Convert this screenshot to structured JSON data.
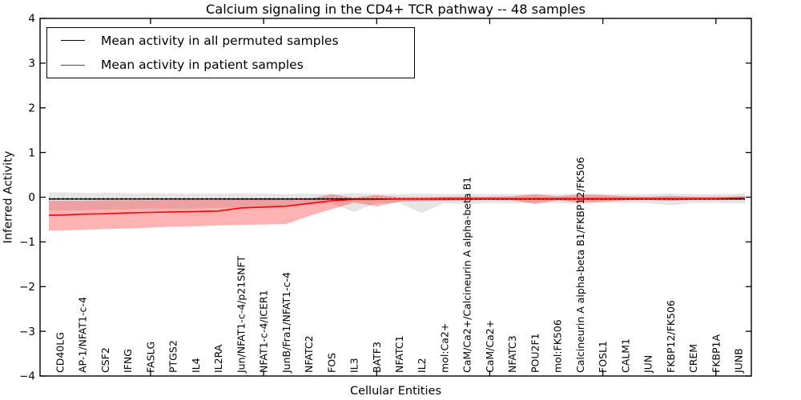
{
  "title": "Calcium signaling in the CD4+ TCR pathway -- 48 samples",
  "legend": {
    "items": [
      {
        "label": "Mean activity in all permuted samples",
        "color": "#000000"
      },
      {
        "label": "Mean activity in patient samples",
        "color": "#ff0000"
      }
    ]
  },
  "axes": {
    "xlabel": "Cellular Entities",
    "ylabel": "Inferred Activity"
  },
  "chart_data": {
    "type": "line",
    "title": "Calcium signaling in the CD4+ TCR pathway -- 48 samples",
    "xlabel": "Cellular Entities",
    "ylabel": "Inferred Activity",
    "ylim": [
      -4,
      4
    ],
    "yticks": [
      4,
      3,
      2,
      1,
      0,
      -1,
      -2,
      -3,
      -4
    ],
    "grid": false,
    "legend_position": "upper left",
    "x_major_tick_indices": [
      4,
      9,
      14,
      19,
      24,
      29
    ],
    "categories": [
      "CD40LG",
      "AP-1/NFAT1-c-4",
      "CSF2",
      "IFNG",
      "FASLG",
      "PTGS2",
      "IL4",
      "IL2RA",
      "Jun/NFAT1-c-4/p21SNFT",
      "NFAT1-c-4/ICER1",
      "JunB/Fra1/NFAT1-c-4",
      "NFATC2",
      "FOS",
      "IL3",
      "BATF3",
      "NFATC1",
      "IL2",
      "mol:Ca2+",
      "CaM/Ca2+/Calcineurin A alpha-beta B1",
      "CaM/Ca2+",
      "NFATC3",
      "POU2F1",
      "mol:FK506",
      "Calcineurin A alpha-beta B1/FKBP12/FK506",
      "FOSL1",
      "CALM1",
      "JUN",
      "FKBP12/FK506",
      "CREM",
      "FKBP1A",
      "JUNB"
    ],
    "series": [
      {
        "name": "Mean activity in all permuted samples",
        "color": "#000000",
        "style": "solid-with-dots",
        "values": [
          -0.04,
          -0.04,
          -0.04,
          -0.04,
          -0.04,
          -0.04,
          -0.04,
          -0.04,
          -0.04,
          -0.04,
          -0.04,
          -0.04,
          -0.04,
          -0.04,
          -0.04,
          -0.04,
          -0.04,
          -0.04,
          -0.04,
          -0.04,
          -0.04,
          -0.04,
          -0.04,
          -0.04,
          -0.04,
          -0.04,
          -0.04,
          -0.04,
          -0.04,
          -0.04,
          -0.04
        ]
      },
      {
        "name": "Mean activity in patient samples",
        "color": "#ff0000",
        "style": "solid",
        "values": [
          -0.4,
          -0.38,
          -0.37,
          -0.35,
          -0.34,
          -0.33,
          -0.32,
          -0.31,
          -0.24,
          -0.22,
          -0.2,
          -0.14,
          -0.08,
          -0.05,
          -0.05,
          -0.04,
          -0.04,
          -0.03,
          -0.03,
          -0.03,
          -0.03,
          -0.03,
          -0.03,
          -0.03,
          -0.03,
          -0.03,
          -0.03,
          -0.03,
          -0.03,
          -0.03,
          -0.02
        ]
      }
    ],
    "bands": [
      {
        "name": "permuted-samples-band",
        "color": "rgba(0,0,0,0.10)",
        "upper": [
          0.11,
          0.1,
          0.1,
          0.09,
          0.09,
          0.09,
          0.08,
          0.08,
          0.08,
          0.08,
          0.07,
          0.08,
          0.07,
          0.09,
          0.07,
          0.07,
          0.08,
          0.07,
          0.08,
          0.07,
          0.07,
          0.07,
          0.07,
          0.08,
          0.07,
          0.07,
          0.07,
          0.08,
          0.07,
          0.07,
          0.08
        ],
        "lower": [
          -0.3,
          -0.29,
          -0.28,
          -0.27,
          -0.26,
          -0.26,
          -0.25,
          -0.24,
          -0.23,
          -0.22,
          -0.21,
          -0.17,
          -0.14,
          -0.33,
          -0.14,
          -0.13,
          -0.35,
          -0.13,
          -0.16,
          -0.13,
          -0.14,
          -0.13,
          -0.13,
          -0.15,
          -0.13,
          -0.13,
          -0.13,
          -0.18,
          -0.13,
          -0.13,
          -0.14
        ]
      },
      {
        "name": "patient-samples-band",
        "color": "rgba(255,0,0,0.30)",
        "upper": [
          -0.08,
          -0.08,
          -0.07,
          -0.07,
          -0.07,
          -0.06,
          -0.06,
          -0.06,
          -0.05,
          -0.05,
          -0.05,
          -0.04,
          0.07,
          -0.01,
          0.05,
          0.0,
          0.0,
          0.01,
          0.01,
          0.01,
          0.02,
          0.07,
          0.02,
          0.06,
          0.05,
          0.02,
          0.01,
          0.03,
          0.01,
          0.01,
          0.02
        ],
        "lower": [
          -0.75,
          -0.73,
          -0.71,
          -0.7,
          -0.68,
          -0.66,
          -0.65,
          -0.63,
          -0.62,
          -0.61,
          -0.6,
          -0.42,
          -0.27,
          -0.12,
          -0.2,
          -0.1,
          -0.09,
          -0.08,
          -0.07,
          -0.06,
          -0.07,
          -0.15,
          -0.07,
          -0.12,
          -0.1,
          -0.07,
          -0.06,
          -0.08,
          -0.06,
          -0.06,
          -0.06
        ]
      }
    ]
  }
}
